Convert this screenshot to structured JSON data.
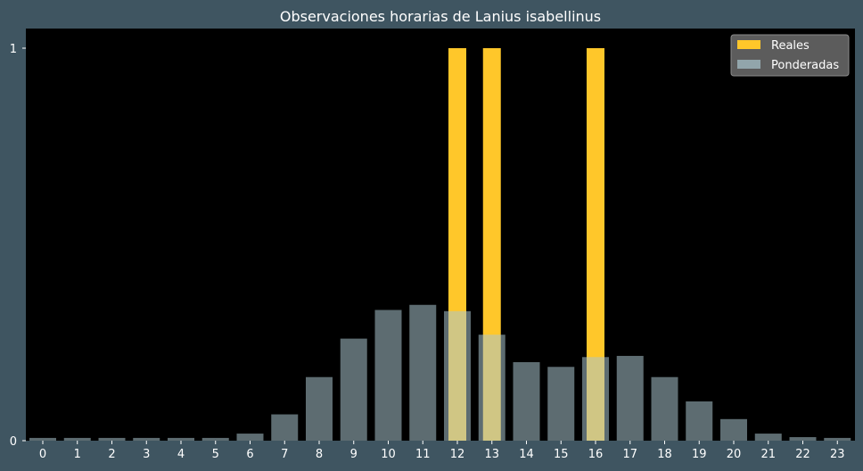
{
  "chart_data": {
    "type": "bar",
    "title": "Observaciones horarias de Lanius isabellinus",
    "xlabel": "",
    "ylabel": "",
    "categories": [
      "0",
      "1",
      "2",
      "3",
      "4",
      "5",
      "6",
      "7",
      "8",
      "9",
      "10",
      "11",
      "12",
      "13",
      "14",
      "15",
      "16",
      "17",
      "18",
      "19",
      "20",
      "21",
      "22",
      "23"
    ],
    "ylim": [
      0,
      1.05
    ],
    "yticks": [
      "0",
      "1"
    ],
    "series": [
      {
        "name": "Reales",
        "color": "#ffc72a",
        "values": [
          0,
          0,
          0,
          0,
          0,
          0,
          0,
          0,
          0,
          0,
          0,
          0,
          1,
          1,
          0,
          0,
          1,
          0,
          0,
          0,
          0,
          0,
          0,
          0
        ]
      },
      {
        "name": "Ponderadas",
        "color": "#a9c5cd",
        "values": [
          0.007,
          0.007,
          0.007,
          0.007,
          0.007,
          0.007,
          0.018,
          0.067,
          0.162,
          0.26,
          0.333,
          0.346,
          0.33,
          0.27,
          0.2,
          0.188,
          0.213,
          0.216,
          0.162,
          0.1,
          0.055,
          0.018,
          0.009,
          0.007
        ]
      }
    ],
    "legend": "top-right",
    "grid": false,
    "background": "#000000"
  }
}
